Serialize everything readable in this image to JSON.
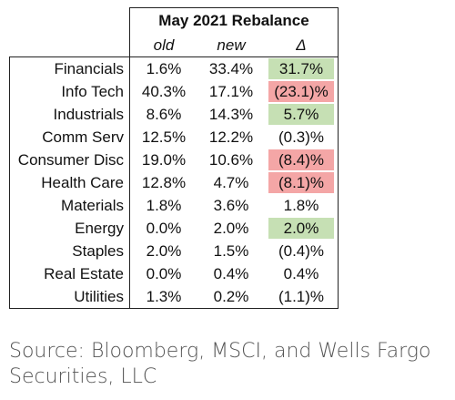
{
  "table": {
    "title": "May 2021 Rebalance",
    "headers": {
      "old": "old",
      "new": "new",
      "delta": "Δ"
    },
    "rows": [
      {
        "sector": "Financials",
        "old": "1.6%",
        "new": "33.4%",
        "delta": "31.7%",
        "highlight": "positive"
      },
      {
        "sector": "Info Tech",
        "old": "40.3%",
        "new": "17.1%",
        "delta": "(23.1)%",
        "highlight": "negative"
      },
      {
        "sector": "Industrials",
        "old": "8.6%",
        "new": "14.3%",
        "delta": "5.7%",
        "highlight": "positive"
      },
      {
        "sector": "Comm Serv",
        "old": "12.5%",
        "new": "12.2%",
        "delta": "(0.3)%",
        "highlight": "none"
      },
      {
        "sector": "Consumer Disc",
        "old": "19.0%",
        "new": "10.6%",
        "delta": "(8.4)%",
        "highlight": "negative"
      },
      {
        "sector": "Health Care",
        "old": "12.8%",
        "new": "4.7%",
        "delta": "(8.1)%",
        "highlight": "negative"
      },
      {
        "sector": "Materials",
        "old": "1.8%",
        "new": "3.6%",
        "delta": "1.8%",
        "highlight": "none"
      },
      {
        "sector": "Energy",
        "old": "0.0%",
        "new": "2.0%",
        "delta": "2.0%",
        "highlight": "positive"
      },
      {
        "sector": "Staples",
        "old": "2.0%",
        "new": "1.5%",
        "delta": "(0.4)%",
        "highlight": "none"
      },
      {
        "sector": "Real Estate",
        "old": "0.0%",
        "new": "0.4%",
        "delta": "0.4%",
        "highlight": "none"
      },
      {
        "sector": "Utilities",
        "old": "1.3%",
        "new": "0.2%",
        "delta": "(1.1)%",
        "highlight": "none"
      }
    ]
  },
  "colors": {
    "positive_fill": "#c6e0b4",
    "negative_fill": "#f4a6a6"
  },
  "source": {
    "text": "Source: Bloomberg, MSCI, and Wells Fargo Securities, LLC"
  }
}
